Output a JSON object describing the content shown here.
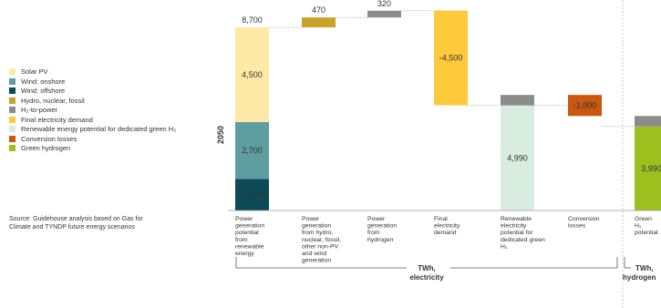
{
  "legend": [
    {
      "label": "Solar PV",
      "color": "#FFE9A6"
    },
    {
      "label": "Wind: onshore",
      "color": "#5E9EA0"
    },
    {
      "label": "Wind: offshore",
      "color": "#0D4A57"
    },
    {
      "label": "Hydro, nuclear, fossil",
      "color": "#C9A227"
    },
    {
      "label": "H₂-to-power",
      "color": "#8C8C8C"
    },
    {
      "label": "Final electricity demand",
      "color": "#FFC93C"
    },
    {
      "label": "Renewable energy potential for dedicated green H₂",
      "color": "#D8EDE0"
    },
    {
      "label": "Conversion losses",
      "color": "#C8570F"
    },
    {
      "label": "Green hydrogen",
      "color": "#9DC01F"
    }
  ],
  "source": "Source: Guidehouse analysis based on Gas for Climate and TYNDP future energy scenarios",
  "chart_data": {
    "type": "bar",
    "variant": "waterfall",
    "year_label": "2050",
    "categories": [
      [
        "Power",
        "generation",
        "potential",
        "from",
        "renewable",
        "energy"
      ],
      [
        "Power",
        "generation",
        "from hydro,",
        "nuclear, fossil,",
        "other non-PV",
        "and wind",
        "generation"
      ],
      [
        "Power",
        "generation",
        "from",
        "hydrogen"
      ],
      [
        "Final",
        "electricity",
        "demand"
      ],
      [
        "Renewable",
        "electricity",
        "potential for",
        "dedicated green",
        "H₂"
      ],
      [
        "Conversion",
        "losses"
      ],
      [
        "Green",
        "H₂",
        "potential"
      ]
    ],
    "bars": [
      {
        "segments": [
          {
            "value": 1500,
            "label": "1,500",
            "color": "#0D4A57",
            "text_color": "#ffffff"
          },
          {
            "value": 2700,
            "label": "2,700",
            "color": "#5E9EA0",
            "text_color": "#ffffff"
          },
          {
            "value": 4500,
            "label": "4,500",
            "color": "#FFE9A6",
            "text_color": "#333333"
          }
        ],
        "base": 0,
        "total_label": "8,700",
        "total_color": "#333333"
      },
      {
        "segments": [
          {
            "value": 470,
            "color": "#C9A227"
          }
        ],
        "base": 8700,
        "total_label": "470",
        "total_color": "#C9A227"
      },
      {
        "segments": [
          {
            "value": 320,
            "color": "#8C8C8C"
          }
        ],
        "base": 9170,
        "total_label": "320",
        "total_color": "#8C8C8C"
      },
      {
        "segments": [
          {
            "value": 4500,
            "label": "-4,500",
            "color": "#FFC93C",
            "text_color": "#333333"
          }
        ],
        "base": 5000,
        "total_label": "",
        "total_color": "#333333"
      },
      {
        "segments": [
          {
            "value": 4990,
            "label": "4,990",
            "color": "#D8EDE0",
            "text_color": "#333333"
          },
          {
            "value": 500,
            "color": "#8C8C8C"
          }
        ],
        "base": 0,
        "total_label": "",
        "total_color": "#333333"
      },
      {
        "segments": [
          {
            "value": 1000,
            "label": "-1,000",
            "color": "#C8570F",
            "text_color": "#ffffff"
          }
        ],
        "base": 4490,
        "total_label": "",
        "total_color": "#333333"
      },
      {
        "segments": [
          {
            "value": 3990,
            "label": "3,990",
            "color": "#9DC01F",
            "text_color": "#ffffff"
          },
          {
            "value": 500,
            "color": "#8C8C8C"
          }
        ],
        "base": 0,
        "total_label": "",
        "total_color": "#333333"
      }
    ],
    "units": [
      {
        "line1": "TWh,",
        "line2": "electricity"
      },
      {
        "line1": "TWh,",
        "line2": "hydrogen"
      }
    ],
    "ylim": [
      0,
      9500
    ]
  }
}
